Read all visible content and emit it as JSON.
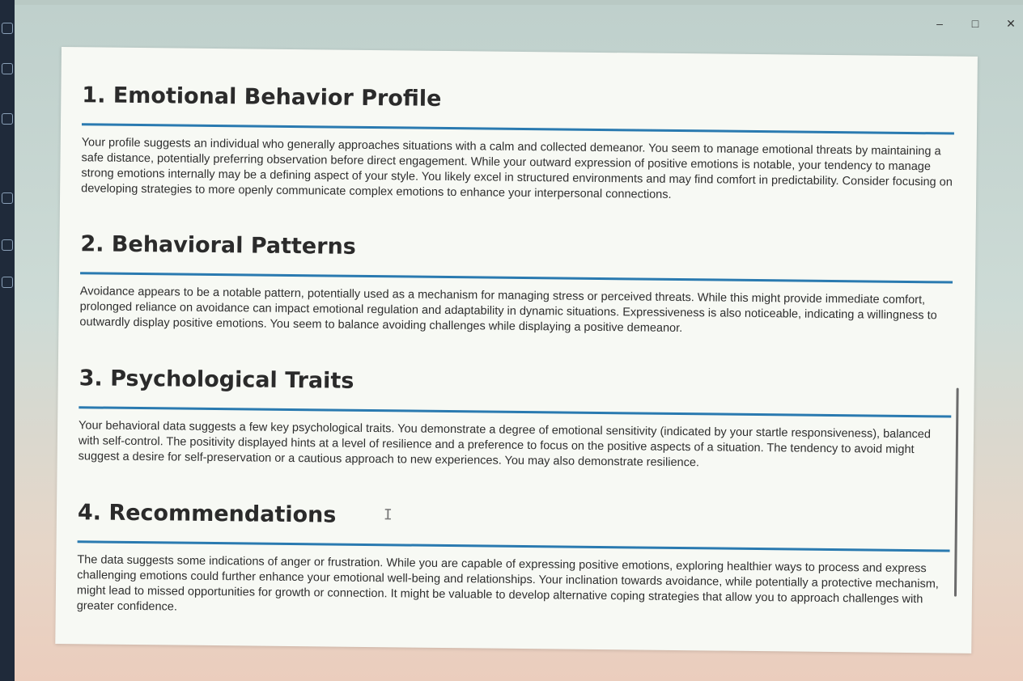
{
  "window": {
    "minimize_glyph": "–",
    "maximize_glyph": "□",
    "close_glyph": "✕"
  },
  "sections": [
    {
      "title": "1. Emotional Behavior Profile",
      "body": "Your profile suggests an individual who generally approaches situations with a calm and collected demeanor. You seem to manage emotional threats by maintaining a safe distance, potentially preferring observation before direct engagement. While your outward expression of positive emotions is notable, your tendency to manage strong emotions internally may be a defining aspect of your style. You likely excel in structured environments and may find comfort in predictability. Consider focusing on developing strategies to more openly communicate complex emotions to enhance your interpersonal connections."
    },
    {
      "title": "2. Behavioral Patterns",
      "body": "Avoidance appears to be a notable pattern, potentially used as a mechanism for managing stress or perceived threats. While this might provide immediate comfort, prolonged reliance on avoidance can impact emotional regulation and adaptability in dynamic situations. Expressiveness is also noticeable, indicating a willingness to outwardly display positive emotions. You seem to balance avoiding challenges while displaying a positive demeanor."
    },
    {
      "title": "3. Psychological Traits",
      "body": "Your behavioral data suggests a few key psychological traits. You demonstrate a degree of emotional sensitivity (indicated by your startle responsiveness), balanced with self-control. The positivity displayed hints at a level of resilience and a preference to focus on the positive aspects of a situation. The tendency to avoid might suggest a desire for self-preservation or a cautious approach to new experiences. You may also demonstrate resilience."
    },
    {
      "title": "4. Recommendations",
      "body": "The data suggests some indications of anger or frustration. While you are capable of expressing positive emotions, exploring healthier ways to process and express challenging emotions could further enhance your emotional well-being and relationships. Your inclination towards avoidance, while potentially a protective mechanism, might lead to missed opportunities for growth or connection. It might be valuable to develop alternative coping strategies that allow you to approach challenges with greater confidence."
    }
  ],
  "colors": {
    "rule": "#2a7ab0",
    "heading": "#2b2b2b",
    "body_text": "#2e2e2e",
    "panel_bg": "#f7f9f4"
  }
}
